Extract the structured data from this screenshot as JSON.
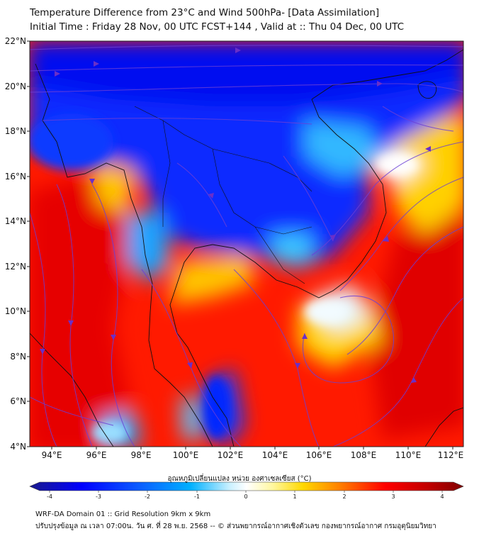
{
  "title": {
    "line1": "Temperature Difference from 23°C and Wind 500hPa- [Data Assimilation]",
    "line2": "Initial Time : Friday 28 Nov, 00 UTC FCST+144 , Valid at ::  Thu 04 Dec, 00 UTC"
  },
  "map": {
    "lat_ticks": [
      "22°N",
      "20°N",
      "18°N",
      "16°N",
      "14°N",
      "12°N",
      "10°N",
      "8°N",
      "6°N",
      "4°N"
    ],
    "lon_ticks": [
      "94°E",
      "96°E",
      "98°E",
      "100°E",
      "102°E",
      "104°E",
      "106°E",
      "108°E",
      "110°E",
      "112°E"
    ],
    "lat_range": [
      4,
      22
    ],
    "lon_range": [
      93,
      112.5
    ],
    "field": "temperature difference from 23°C",
    "vectors": "wind streamlines 500hPa"
  },
  "colorbar": {
    "label": "อุณหภูมิเปลี่ยนแปลง หน่วย องศาเซลเซียส (°C)",
    "ticks": [
      "-4",
      "-3",
      "-2",
      "-1",
      "0",
      "1",
      "2",
      "3",
      "4"
    ],
    "range": [
      -4,
      4
    ],
    "colors": [
      "#1a1a8c",
      "#0000ff",
      "#0b5bff",
      "#00b0ff",
      "#c8f0ff",
      "#ffffff",
      "#fff7a0",
      "#ffd800",
      "#ff7a00",
      "#ff0000",
      "#c00000",
      "#800000"
    ]
  },
  "footer": {
    "line1": "WRF-DA Domain 01 :: Grid Resolution 9km x 9km",
    "line2": "ปรับปรุงข้อมูล ณ เวลา 07:00น. วัน ศ. ที่ 28 พ.ย. 2568 -- © ส่วนพยากรณ์อากาศเชิงตัวเลข กองพยากรณ์อากาศ กรมอุตุนิยมวิทยา"
  }
}
